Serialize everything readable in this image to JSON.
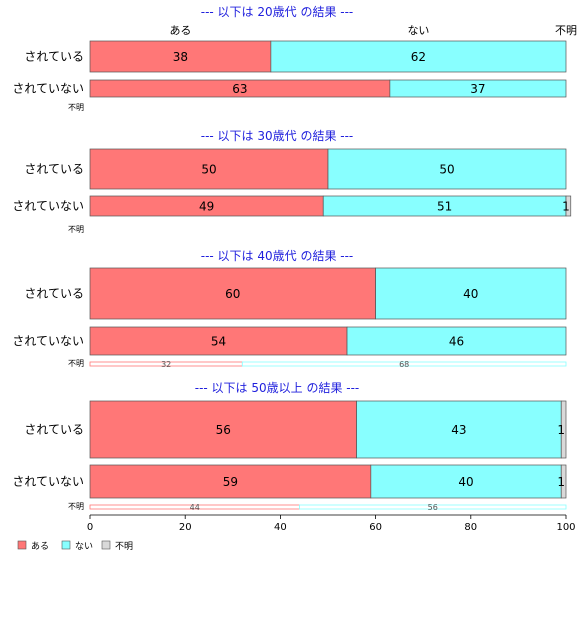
{
  "chart_data": {
    "type": "bar",
    "stacked": true,
    "orientation": "horizontal",
    "series_names": [
      "ある",
      "ない",
      "不明"
    ],
    "colors": [
      "#FF7777",
      "#88FFFF",
      "#D9D9D9"
    ],
    "top_labels": [
      "ある",
      "ない",
      "不明"
    ],
    "xlim": [
      0,
      100
    ],
    "xticks": [
      0,
      20,
      40,
      60,
      80,
      100
    ],
    "groups": [
      {
        "title": "--- 以下は 20歳代 の結果 ---",
        "rows": [
          {
            "label": "されている",
            "values": [
              38,
              62,
              0
            ]
          },
          {
            "label": "されていない",
            "values": [
              63,
              37,
              0
            ]
          },
          {
            "label": "不明",
            "values": [
              0,
              0,
              0
            ]
          }
        ]
      },
      {
        "title": "--- 以下は 30歳代 の結果 ---",
        "rows": [
          {
            "label": "されている",
            "values": [
              50,
              50,
              0
            ]
          },
          {
            "label": "されていない",
            "values": [
              49,
              51,
              1
            ]
          },
          {
            "label": "不明",
            "values": [
              0,
              0,
              0
            ]
          }
        ]
      },
      {
        "title": "--- 以下は 40歳代 の結果 ---",
        "rows": [
          {
            "label": "されている",
            "values": [
              60,
              40,
              0
            ]
          },
          {
            "label": "されていない",
            "values": [
              54,
              46,
              0
            ]
          },
          {
            "label": "不明",
            "values": [
              32,
              68,
              0
            ]
          }
        ]
      },
      {
        "title": "--- 以下は 50歳以上 の結果 ---",
        "rows": [
          {
            "label": "されている",
            "values": [
              56,
              43,
              1
            ]
          },
          {
            "label": "されていない",
            "values": [
              59,
              40,
              1
            ]
          },
          {
            "label": "不明",
            "values": [
              44,
              56,
              0
            ]
          }
        ]
      }
    ]
  }
}
